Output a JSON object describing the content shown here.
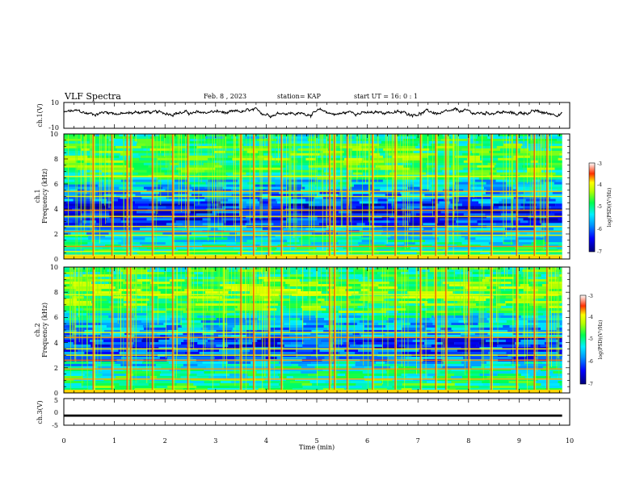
{
  "header": {
    "title": "VLF Spectra",
    "date": "Feb. 8 , 2023",
    "station": "station= KAP",
    "start": "start UT = 16: 0 : 1"
  },
  "chart_data": [
    {
      "type": "line",
      "panel": "ch1-waveform",
      "ylabel": "ch.1(V)",
      "ylim": [
        -10,
        10
      ],
      "ytick_labels": [
        "-10",
        "10"
      ],
      "xlim": [
        0,
        10
      ],
      "x_extent": [
        0,
        9.85
      ],
      "mean": 2,
      "amplitude_range": [
        -2,
        7
      ]
    },
    {
      "type": "heatmap",
      "panel": "ch1-spectrogram",
      "ylabel": "ch.1\nFrequency (kHz)",
      "ylabel_line1": "ch.1",
      "ylabel_line2": "Frequency (kHz)",
      "ylim": [
        0,
        10
      ],
      "ytick_labels": [
        "0",
        "2",
        "4",
        "6",
        "8",
        "10"
      ],
      "xlim": [
        0,
        10
      ],
      "x_extent": [
        0,
        9.85
      ],
      "colorbar": {
        "label": "log(PSD)(V²/Hz)",
        "range": [
          -7,
          -3
        ],
        "tick_labels": [
          "-3",
          "-4",
          "-5",
          "-6",
          "-7"
        ]
      },
      "bright_lines_khz": [
        0.3,
        0.6,
        1.0,
        1.9,
        2.2,
        2.6,
        3.4,
        3.9,
        5.0,
        5.4,
        6.6
      ],
      "impulse_times_min": [
        0.58,
        0.95,
        1.25,
        1.32,
        1.75,
        2.15,
        2.45,
        3.5,
        3.75,
        4.05,
        4.3,
        5.25,
        5.35,
        5.6,
        6.1,
        6.55,
        7.05,
        7.35,
        7.55,
        8.0,
        8.45,
        8.95,
        9.3,
        9.55
      ]
    },
    {
      "type": "heatmap",
      "panel": "ch2-spectrogram",
      "ylabel": "ch.2\nFrequency (kHz)",
      "ylabel_line1": "ch.2",
      "ylabel_line2": "Frequency (kHz)",
      "ylim": [
        0,
        10
      ],
      "ytick_labels": [
        "0",
        "2",
        "4",
        "6",
        "8",
        "10"
      ],
      "xlim": [
        0,
        10
      ],
      "x_extent": [
        0,
        9.85
      ],
      "colorbar": {
        "label": "log(PSD)(V²/Hz)",
        "range": [
          -7,
          -3
        ],
        "tick_labels": [
          "-3",
          "-4",
          "-5",
          "-6",
          "-7"
        ]
      },
      "bright_lines_khz": [
        0.2,
        1.1,
        1.9,
        2.6,
        3.0,
        3.5,
        4.4,
        4.8,
        7.8
      ],
      "impulse_times_min": [
        0.58,
        0.95,
        1.25,
        1.32,
        1.75,
        2.15,
        2.45,
        3.5,
        3.75,
        4.05,
        4.3,
        5.25,
        5.35,
        5.6,
        6.1,
        6.55,
        7.05,
        7.35,
        7.55,
        8.0,
        8.45,
        8.95,
        9.3,
        9.55
      ]
    },
    {
      "type": "line",
      "panel": "ch3-waveform",
      "ylabel": "ch.3(V)",
      "ylim": [
        -5,
        5
      ],
      "ytick_labels": [
        "-5",
        "0",
        "5"
      ],
      "xlim": [
        0,
        10
      ],
      "x_extent": [
        0,
        9.85
      ],
      "level": -1.4,
      "amplitude_range": [
        -1.8,
        -1.0
      ]
    }
  ],
  "xaxis": {
    "label": "Time (min)",
    "tick_labels": [
      "0",
      "1",
      "2",
      "3",
      "4",
      "5",
      "6",
      "7",
      "8",
      "9",
      "10"
    ]
  }
}
